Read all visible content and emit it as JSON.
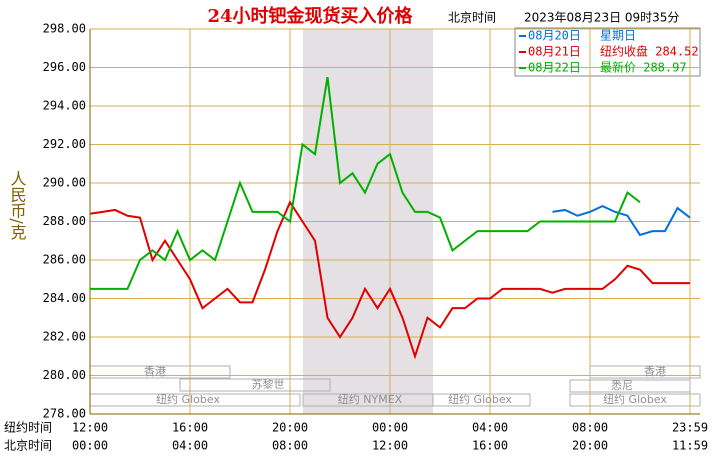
{
  "chart_data": {
    "type": "line",
    "title": "24小时钯金现货买入价格",
    "time_label": "北京时间",
    "timestamp": "2023年08月23日 09时35分",
    "y_label": "人民币/克",
    "x_row_labels": [
      "纽约时间",
      "北京时间"
    ],
    "x": [
      0,
      0.5,
      1,
      1.5,
      2,
      2.5,
      3,
      3.5,
      4,
      4.5,
      5,
      5.5,
      6,
      6.5,
      7,
      7.5,
      8,
      8.5,
      9,
      9.5,
      10,
      10.5,
      11,
      11.5,
      12,
      12.5,
      13,
      13.5,
      14,
      14.5,
      15,
      15.5,
      16,
      16.5,
      17,
      17.5,
      18,
      18.5,
      19,
      19.5,
      20,
      20.5,
      21,
      21.5,
      22,
      22.5,
      23,
      23.5,
      24
    ],
    "xlim": [
      0,
      24
    ],
    "xticks": [
      {
        "value": 0,
        "label": "12:00"
      },
      {
        "value": 4,
        "label": "16:00"
      },
      {
        "value": 8,
        "label": "20:00"
      },
      {
        "value": 12,
        "label": "00:00"
      },
      {
        "value": 16,
        "label": "04:00"
      },
      {
        "value": 20,
        "label": "08:00"
      },
      {
        "value": 24,
        "label": "23:59"
      }
    ],
    "xticks_beijing": [
      "00:00",
      "04:00",
      "08:00",
      "12:00",
      "16:00",
      "20:00",
      "11:59"
    ],
    "ylim": [
      278,
      298
    ],
    "yticks": [
      {
        "value": 278,
        "label": "278.00"
      },
      {
        "value": 280,
        "label": "280.00"
      },
      {
        "value": 282,
        "label": "282.00"
      },
      {
        "value": 284,
        "label": "284.00"
      },
      {
        "value": 286,
        "label": "286.00"
      },
      {
        "value": 288,
        "label": "288.00"
      },
      {
        "value": 290,
        "label": "290.00"
      },
      {
        "value": 292,
        "label": "292.00"
      },
      {
        "value": 294,
        "label": "294.00"
      },
      {
        "value": 296,
        "label": "296.00"
      },
      {
        "value": 298,
        "label": "298.00"
      }
    ],
    "grid": true,
    "series": [
      {
        "name": "08月20日",
        "note": "星期日",
        "color": "#0070e0",
        "values": [
          null,
          null,
          null,
          null,
          null,
          null,
          null,
          null,
          null,
          null,
          null,
          null,
          null,
          null,
          null,
          null,
          null,
          null,
          null,
          null,
          null,
          null,
          null,
          null,
          null,
          null,
          null,
          null,
          null,
          null,
          null,
          null,
          null,
          null,
          null,
          null,
          null,
          288.5,
          288.6,
          288.3,
          288.5,
          288.8,
          288.5,
          288.3,
          287.3,
          287.5,
          287.5,
          288.7,
          288.2
        ]
      },
      {
        "name": "08月21日",
        "note": "纽约收盘 284.52",
        "color": "#e00000",
        "values": [
          288.4,
          288.5,
          288.6,
          288.3,
          288.2,
          286,
          287,
          286,
          285,
          283.5,
          284,
          284.5,
          283.8,
          283.8,
          285.5,
          287.5,
          289,
          288,
          287,
          283,
          282,
          283,
          284.5,
          283.5,
          284.5,
          283,
          281,
          283,
          282.5,
          283.5,
          283.5,
          284,
          284,
          284.5,
          284.5,
          284.5,
          284.5,
          284.3,
          284.5,
          284.5,
          284.5,
          284.5,
          285,
          285.7,
          285.5,
          284.8,
          284.8,
          284.8,
          284.8
        ]
      },
      {
        "name": "08月22日",
        "note": "最新价 288.97",
        "color": "#00b000",
        "values": [
          284.5,
          284.5,
          284.5,
          284.5,
          286,
          286.5,
          286,
          287.5,
          286,
          286.5,
          286,
          288,
          290,
          288.5,
          288.5,
          288.5,
          288,
          292,
          291.5,
          295.5,
          290,
          290.5,
          289.5,
          291,
          291.5,
          289.5,
          288.5,
          288.5,
          288.2,
          286.5,
          287,
          287.5,
          287.5,
          287.5,
          287.5,
          287.5,
          288,
          288,
          288,
          288,
          288,
          288,
          288,
          289.5,
          289,
          null,
          null,
          null,
          null
        ]
      }
    ],
    "sessions": [
      "香港",
      "苏黎世",
      "纽约 Globex",
      "纽约 NYMEX",
      "纽约 Globex",
      "香港",
      "悉尼",
      "纽约 Globex"
    ]
  }
}
